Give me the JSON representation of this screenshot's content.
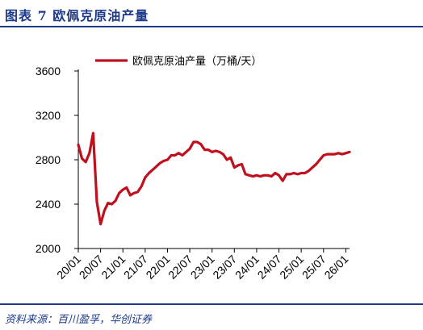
{
  "header": {
    "title": "图表 7  欧佩克原油产量"
  },
  "footer": {
    "source": "资料来源：百川盈孚，华创证券"
  },
  "colors": {
    "line": "#c0101e",
    "accent": "#1d3a8a",
    "axis": "#000000"
  },
  "chart_data": {
    "type": "line",
    "title": "",
    "xlabel": "",
    "ylabel": "",
    "ylim": [
      2000,
      3600
    ],
    "yticks": [
      2000,
      2400,
      2800,
      3200,
      3600
    ],
    "xticks": [
      "20/01",
      "20/07",
      "21/01",
      "21/07",
      "22/01",
      "22/07",
      "23/01",
      "23/07",
      "24/01",
      "24/07",
      "25/01",
      "25/07",
      "26/01"
    ],
    "legend": {
      "position": "top",
      "entries": [
        "欧佩克原油产量（万桶/天）"
      ]
    },
    "grid": false,
    "series": [
      {
        "name": "欧佩克原油产量（万桶/天）",
        "x": [
          "2020-01",
          "2020-02",
          "2020-03",
          "2020-04",
          "2020-05",
          "2020-06",
          "2020-07",
          "2020-08",
          "2020-09",
          "2020-10",
          "2020-11",
          "2020-12",
          "2021-01",
          "2021-02",
          "2021-03",
          "2021-04",
          "2021-05",
          "2021-06",
          "2021-07",
          "2021-08",
          "2021-09",
          "2021-10",
          "2021-11",
          "2021-12",
          "2022-01",
          "2022-02",
          "2022-03",
          "2022-04",
          "2022-05",
          "2022-06",
          "2022-07",
          "2022-08",
          "2022-09",
          "2022-10",
          "2022-11",
          "2022-12",
          "2023-01",
          "2023-02",
          "2023-03",
          "2023-04",
          "2023-05",
          "2023-06",
          "2023-07",
          "2023-08",
          "2023-09",
          "2023-10",
          "2023-11",
          "2023-12",
          "2024-01",
          "2024-02",
          "2024-03",
          "2024-04",
          "2024-05",
          "2024-06",
          "2024-07",
          "2024-08",
          "2024-09",
          "2024-10",
          "2024-11",
          "2024-12",
          "2025-01",
          "2025-02",
          "2025-03",
          "2025-04",
          "2025-05",
          "2025-06",
          "2025-07",
          "2025-08",
          "2025-09",
          "2025-10",
          "2025-11",
          "2025-12",
          "2026-01",
          "2026-02"
        ],
        "values": [
          2935,
          2810,
          2780,
          2860,
          3040,
          2420,
          2220,
          2340,
          2410,
          2400,
          2430,
          2500,
          2530,
          2550,
          2480,
          2500,
          2510,
          2560,
          2640,
          2680,
          2710,
          2740,
          2770,
          2790,
          2800,
          2840,
          2840,
          2860,
          2840,
          2870,
          2900,
          2960,
          2960,
          2940,
          2890,
          2890,
          2870,
          2880,
          2870,
          2850,
          2800,
          2820,
          2730,
          2750,
          2760,
          2670,
          2660,
          2650,
          2660,
          2650,
          2660,
          2660,
          2650,
          2680,
          2660,
          2610,
          2670,
          2670,
          2680,
          2670,
          2680,
          2680,
          2700,
          2730,
          2760,
          2800,
          2840,
          2850,
          2850,
          2850,
          2860,
          2850,
          2860,
          2870
        ]
      }
    ]
  }
}
